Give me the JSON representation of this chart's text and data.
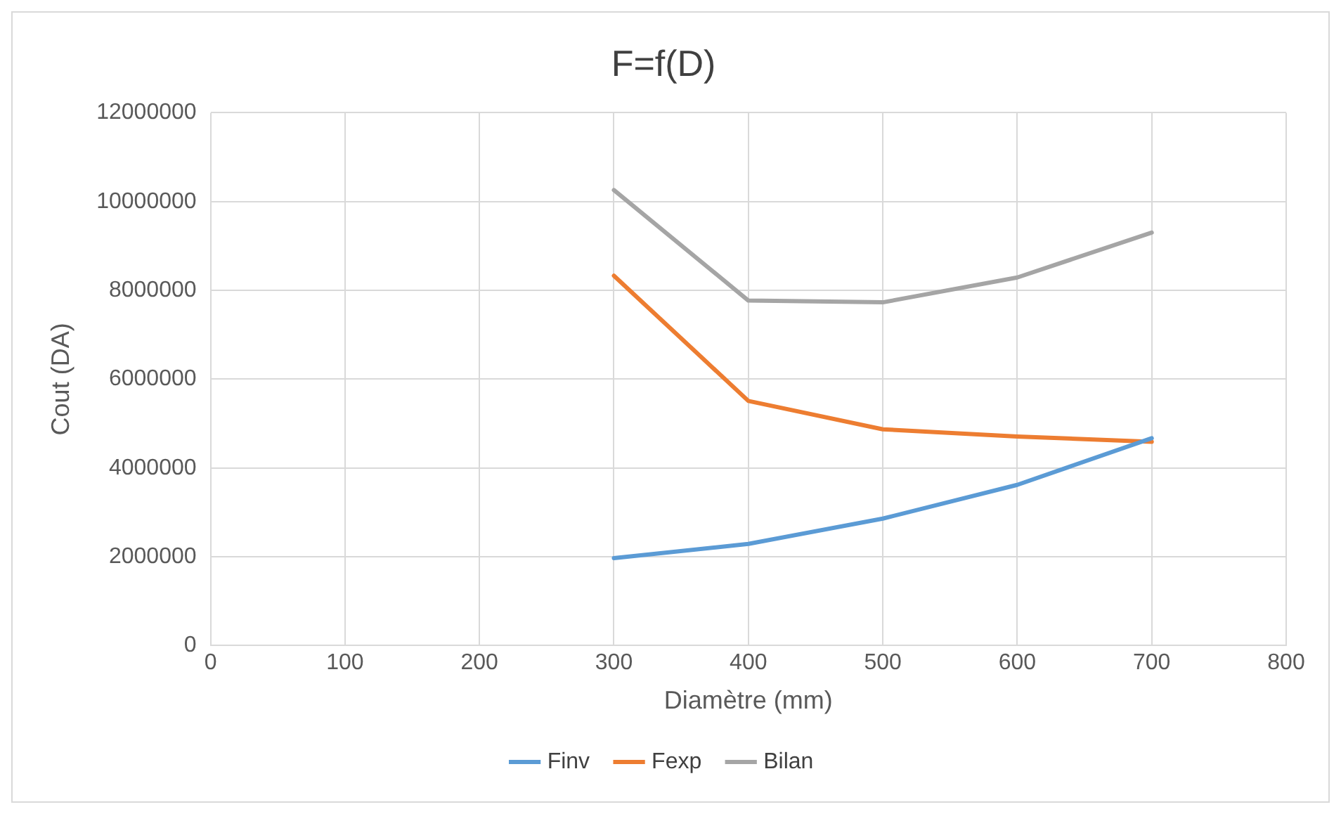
{
  "chart_data": {
    "type": "line",
    "title": "F=f(D)",
    "xlabel": "Diamètre (mm)",
    "ylabel": "Cout (DA)",
    "x": [
      300,
      400,
      500,
      600,
      700
    ],
    "series": [
      {
        "name": "Finv",
        "color": "#5b9bd5",
        "values": [
          1970000,
          2290000,
          2860000,
          3620000,
          4670000
        ]
      },
      {
        "name": "Fexp",
        "color": "#ed7d31",
        "values": [
          8330000,
          5510000,
          4870000,
          4710000,
          4590000
        ]
      },
      {
        "name": "Bilan",
        "color": "#a5a5a5",
        "values": [
          10260000,
          7770000,
          7730000,
          8290000,
          9300000
        ]
      }
    ],
    "xlim": [
      0,
      800
    ],
    "xticks": [
      0,
      100,
      200,
      300,
      400,
      500,
      600,
      700,
      800
    ],
    "ylim": [
      0,
      12000000
    ],
    "yticks": [
      0,
      2000000,
      4000000,
      6000000,
      8000000,
      10000000,
      12000000
    ],
    "grid": true,
    "legend": "bottom",
    "marker": "none"
  }
}
